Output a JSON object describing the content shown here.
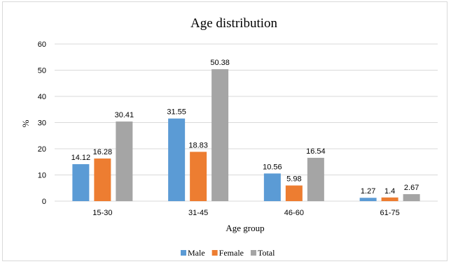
{
  "chart_data": {
    "type": "bar",
    "title": "Age distribution",
    "xlabel": "Age group",
    "ylabel": "%",
    "categories": [
      "15-30",
      "31-45",
      "46-60",
      "61-75"
    ],
    "ylim": [
      0,
      60
    ],
    "yticks": [
      0,
      10,
      20,
      30,
      40,
      50,
      60
    ],
    "grid": true,
    "legend_position": "bottom",
    "series": [
      {
        "name": "Male",
        "color": "#5b9bd5",
        "values": [
          14.12,
          31.55,
          10.56,
          1.27
        ]
      },
      {
        "name": "Female",
        "color": "#ed7d31",
        "values": [
          16.28,
          18.83,
          5.98,
          1.4
        ]
      },
      {
        "name": "Total",
        "color": "#a5a5a5",
        "values": [
          30.41,
          50.38,
          16.54,
          2.67
        ]
      }
    ]
  }
}
